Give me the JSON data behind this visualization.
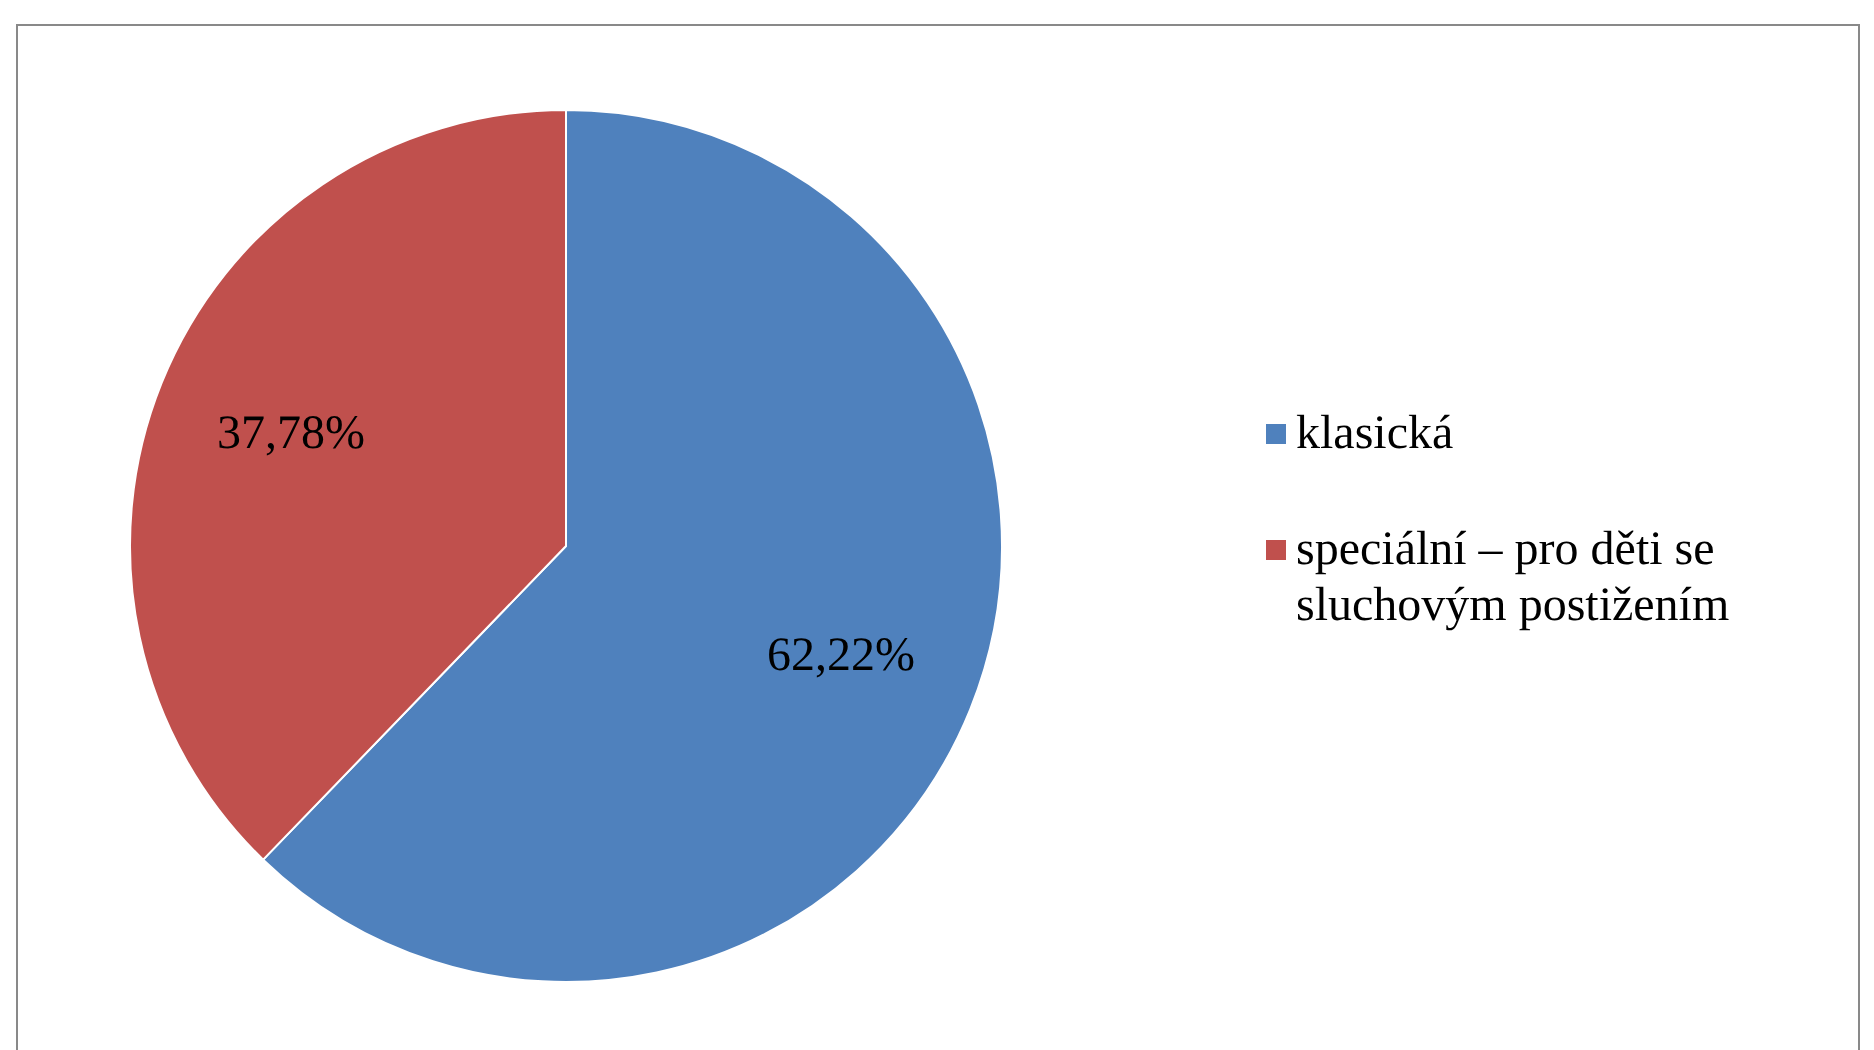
{
  "chart_data": {
    "type": "pie",
    "categories": [
      "klasická",
      "speciální – pro děti se sluchovým postižením"
    ],
    "values": [
      62.22,
      37.78
    ],
    "colors": [
      "#4f81bd",
      "#c0504d"
    ],
    "value_labels": [
      "62,22%",
      "37,78%"
    ],
    "legend": "right"
  }
}
